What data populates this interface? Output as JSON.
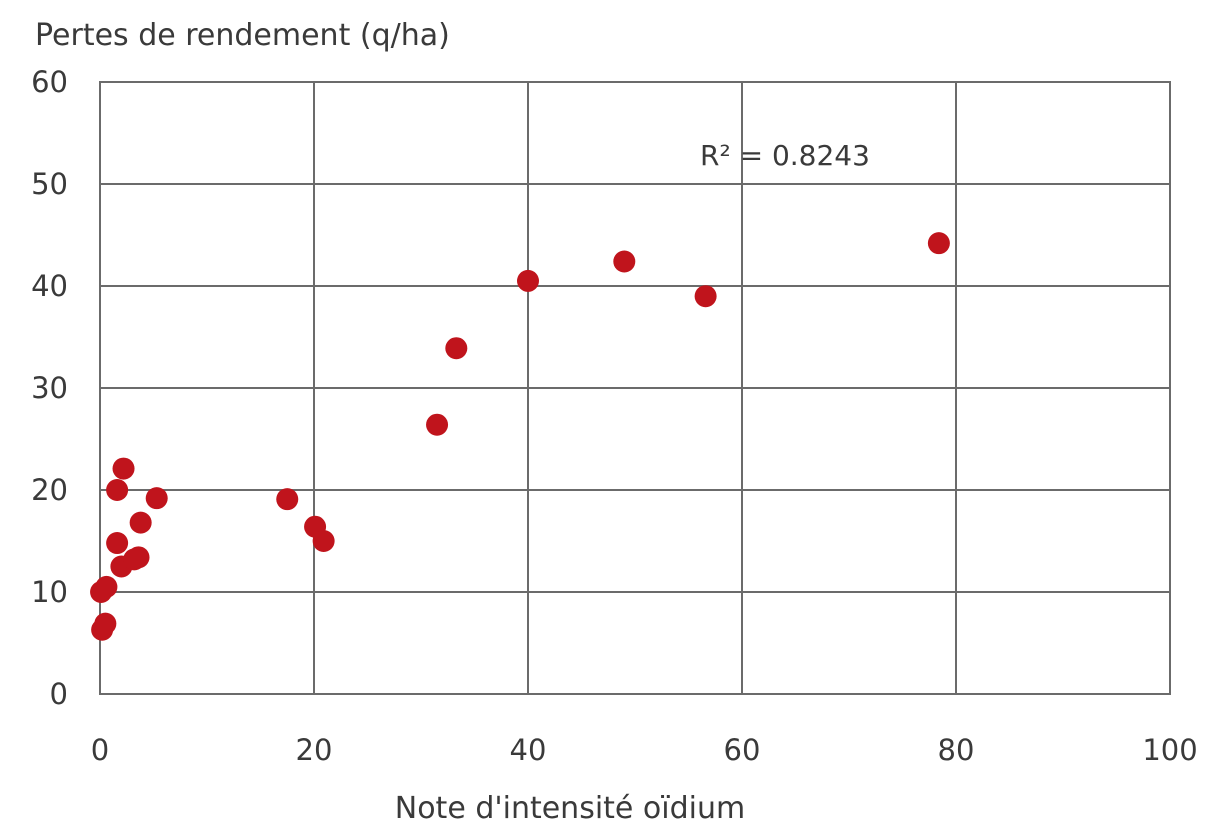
{
  "chart_data": {
    "type": "scatter",
    "title": "",
    "xlabel": "Note d'intensité oïdium",
    "ylabel": "Pertes de rendement (q/ha)",
    "xlim": [
      0,
      100
    ],
    "ylim": [
      0,
      60
    ],
    "x_ticks": [
      "0",
      "20",
      "40",
      "60",
      "80",
      "100"
    ],
    "y_ticks": [
      "0",
      "10",
      "20",
      "30",
      "40",
      "50",
      "60"
    ],
    "grid": true,
    "marker_color": "#c0141c",
    "annotation": "R² = 0.8243",
    "series": [
      {
        "points": [
          [
            0.2,
            6.3
          ],
          [
            0.5,
            6.9
          ],
          [
            0.1,
            10.0
          ],
          [
            0.6,
            10.5
          ],
          [
            1.6,
            14.8
          ],
          [
            2.0,
            12.5
          ],
          [
            3.2,
            13.2
          ],
          [
            3.6,
            13.4
          ],
          [
            3.8,
            16.8
          ],
          [
            1.6,
            20.0
          ],
          [
            2.2,
            22.1
          ],
          [
            5.3,
            19.2
          ],
          [
            17.5,
            19.1
          ],
          [
            20.1,
            16.4
          ],
          [
            20.9,
            15.0
          ],
          [
            31.5,
            26.4
          ],
          [
            33.3,
            33.9
          ],
          [
            40.0,
            40.5
          ],
          [
            49.0,
            42.4
          ],
          [
            56.6,
            39.0
          ],
          [
            78.4,
            44.2
          ]
        ]
      }
    ]
  }
}
